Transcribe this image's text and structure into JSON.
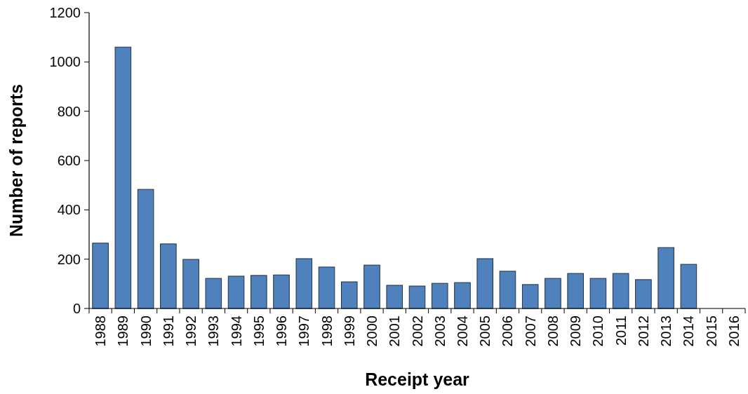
{
  "chart_data": {
    "type": "bar",
    "xlabel": "Receipt year",
    "ylabel": "Number of reports",
    "categories": [
      "1988",
      "1989",
      "1990",
      "1991",
      "1992",
      "1993",
      "1994",
      "1995",
      "1996",
      "1997",
      "1998",
      "1999",
      "2000",
      "2001",
      "2002",
      "2003",
      "2004",
      "2005",
      "2006",
      "2007",
      "2008",
      "2009",
      "2010",
      "2011",
      "2012",
      "2013",
      "2014",
      "2015",
      "2016"
    ],
    "values": [
      265,
      1060,
      483,
      262,
      199,
      122,
      131,
      134,
      136,
      202,
      168,
      108,
      176,
      94,
      91,
      102,
      105,
      202,
      151,
      97,
      122,
      142,
      122,
      142,
      117,
      247,
      179,
      0,
      0
    ],
    "color": "#4f81bd",
    "ylim": [
      0,
      1200
    ],
    "yticks": [
      0,
      200,
      400,
      600,
      800,
      1000,
      1200
    ],
    "grid": false
  }
}
